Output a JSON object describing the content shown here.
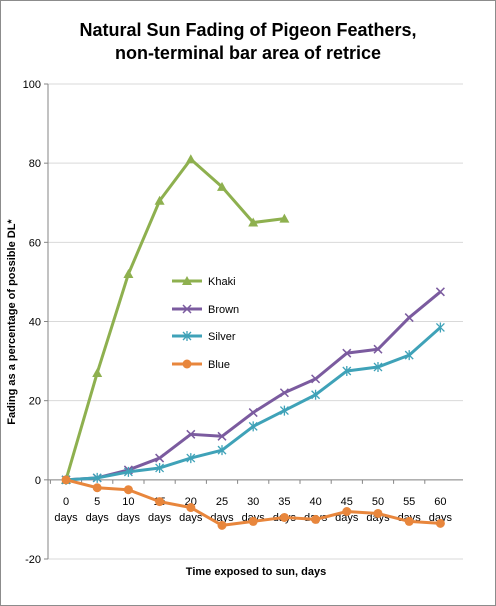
{
  "chart_data": {
    "type": "line",
    "title": "Natural Sun Fading of Pigeon Feathers,",
    "subtitle": "non-terminal bar area of retrice",
    "xlabel": "Time exposed to sun, days",
    "ylabel": "Fading as a percentage of possible DL*",
    "ylim": [
      -20,
      100
    ],
    "yticks": [
      "100",
      "80",
      "60",
      "40",
      "20",
      "0",
      "-20"
    ],
    "ytick_values": [
      100,
      80,
      60,
      40,
      20,
      0,
      -20
    ],
    "categories": [
      "0 days",
      "5 days",
      "10 days",
      "15 days",
      "20 days",
      "25 days",
      "30 days",
      "35 days",
      "40 days",
      "45 days",
      "50 days",
      "55 days",
      "60 days"
    ],
    "grid": "horizontal",
    "legend_position": "left-center",
    "series": [
      {
        "name": "Khaki",
        "color": "#8eb04f",
        "marker": "triangle",
        "values": [
          0,
          27,
          52,
          70.5,
          81,
          74,
          65,
          66,
          null,
          null,
          null,
          null,
          null
        ]
      },
      {
        "name": "Brown",
        "color": "#7b5b9f",
        "marker": "x",
        "values": [
          0,
          0.5,
          2.5,
          5.5,
          11.5,
          11,
          17,
          22,
          25.5,
          32,
          33,
          41,
          47.5
        ]
      },
      {
        "name": "Silver",
        "color": "#3fa2b8",
        "marker": "star",
        "values": [
          0,
          0.5,
          2,
          3,
          5.5,
          7.5,
          13.5,
          17.5,
          21.5,
          27.5,
          28.5,
          31.5,
          38.5
        ]
      },
      {
        "name": "Blue",
        "color": "#e8863c",
        "marker": "circle",
        "values": [
          0,
          -2,
          -2.5,
          -5.5,
          -7,
          -11.5,
          -10.5,
          -9.5,
          -10,
          -8,
          -8.5,
          -10.5,
          -11
        ]
      }
    ]
  }
}
